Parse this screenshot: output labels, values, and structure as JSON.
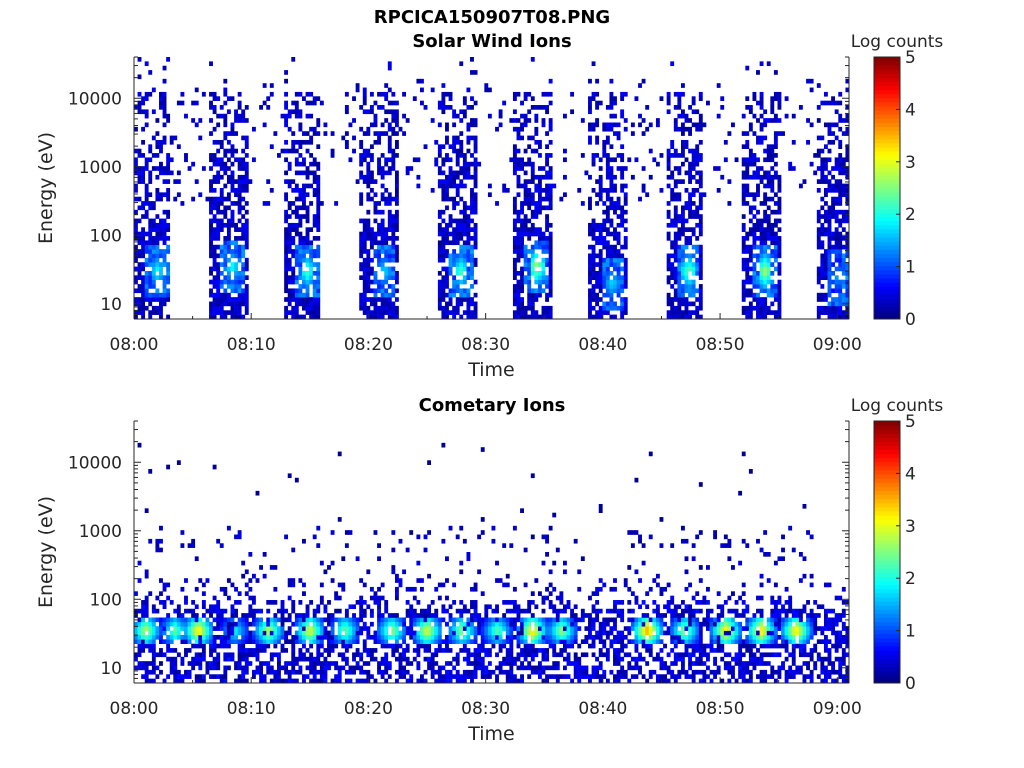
{
  "figure_title": "RPCICA150907T08.PNG",
  "chart_data": [
    {
      "type": "heatmap",
      "title": "Solar Wind Ions",
      "xlabel": "Time",
      "ylabel": "Energy (eV)",
      "x_ticks": [
        "08:00",
        "08:10",
        "08:20",
        "08:30",
        "08:40",
        "08:50",
        "09:00"
      ],
      "x_range": [
        "08:00",
        "09:01"
      ],
      "y_scale": "log",
      "y_ticks": [
        10,
        100,
        1000,
        10000
      ],
      "y_tick_labels": [
        "10",
        "100",
        "1000",
        "10000"
      ],
      "y_range": [
        6,
        40000
      ],
      "colorbar": {
        "label": "Log counts",
        "range": [
          0,
          5
        ],
        "ticks": [
          "0",
          "1",
          "2",
          "3",
          "4",
          "5"
        ],
        "colormap": "jet"
      },
      "bursts": [
        {
          "start": 0.0,
          "end": 3.2,
          "peak_energy": 30,
          "peak_level": 2.0
        },
        {
          "start": 6.3,
          "end": 9.7,
          "peak_energy": 35,
          "peak_level": 2.0
        },
        {
          "start": 12.8,
          "end": 16.0,
          "peak_energy": 30,
          "peak_level": 2.3
        },
        {
          "start": 19.3,
          "end": 22.6,
          "peak_energy": 30,
          "peak_level": 1.8
        },
        {
          "start": 25.8,
          "end": 29.2,
          "peak_energy": 30,
          "peak_level": 2.3
        },
        {
          "start": 32.3,
          "end": 35.6,
          "peak_energy": 35,
          "peak_level": 2.8
        },
        {
          "start": 38.8,
          "end": 42.0,
          "peak_energy": 20,
          "peak_level": 1.8
        },
        {
          "start": 45.3,
          "end": 48.6,
          "peak_energy": 30,
          "peak_level": 2.5
        },
        {
          "start": 51.8,
          "end": 55.1,
          "peak_energy": 30,
          "peak_level": 2.8
        },
        {
          "start": 58.3,
          "end": 61.0,
          "peak_energy": 25,
          "peak_level": 1.5
        }
      ]
    },
    {
      "type": "heatmap",
      "title": "Cometary Ions",
      "xlabel": "Time",
      "ylabel": "Energy (eV)",
      "x_ticks": [
        "08:00",
        "08:10",
        "08:20",
        "08:30",
        "08:40",
        "08:50",
        "09:00"
      ],
      "x_range": [
        "08:00",
        "09:01"
      ],
      "y_scale": "log",
      "y_ticks": [
        10,
        100,
        1000,
        10000
      ],
      "y_tick_labels": [
        "10",
        "100",
        "1000",
        "10000"
      ],
      "y_range": [
        6,
        40000
      ],
      "colorbar": {
        "label": "Log counts",
        "range": [
          0,
          5
        ],
        "ticks": [
          "0",
          "1",
          "2",
          "3",
          "4",
          "5"
        ],
        "colormap": "jet"
      },
      "peaks": [
        {
          "time": 1.0,
          "energy": 35,
          "level": 3.0
        },
        {
          "time": 3.5,
          "energy": 35,
          "level": 2.5
        },
        {
          "time": 5.5,
          "energy": 35,
          "level": 3.5
        },
        {
          "time": 8.6,
          "energy": 35,
          "level": 2.0
        },
        {
          "time": 11.5,
          "energy": 35,
          "level": 3.0
        },
        {
          "time": 15.0,
          "energy": 35,
          "level": 3.2
        },
        {
          "time": 18.0,
          "energy": 35,
          "level": 2.6
        },
        {
          "time": 22.0,
          "energy": 35,
          "level": 2.8
        },
        {
          "time": 25.0,
          "energy": 35,
          "level": 3.2
        },
        {
          "time": 28.0,
          "energy": 35,
          "level": 2.8
        },
        {
          "time": 31.0,
          "energy": 35,
          "level": 2.5
        },
        {
          "time": 34.0,
          "energy": 35,
          "level": 3.5
        },
        {
          "time": 36.5,
          "energy": 35,
          "level": 2.8
        },
        {
          "time": 43.8,
          "energy": 35,
          "level": 3.8
        },
        {
          "time": 47.0,
          "energy": 35,
          "level": 2.8
        },
        {
          "time": 50.5,
          "energy": 35,
          "level": 3.5
        },
        {
          "time": 53.5,
          "energy": 35,
          "level": 3.5
        },
        {
          "time": 56.5,
          "energy": 35,
          "level": 3.5
        }
      ]
    }
  ]
}
